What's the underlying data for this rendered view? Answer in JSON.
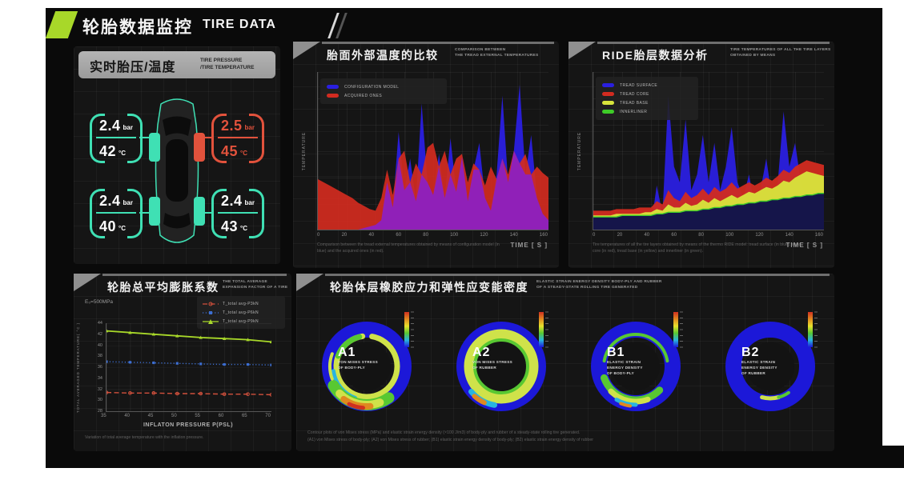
{
  "header": {
    "title_zh": "轮胎数据监控",
    "title_en": "TIRE DATA"
  },
  "palette": {
    "accent_green": "#a8d829",
    "teal": "#3fe0b4",
    "alert_red": "#e2523c",
    "chart_blue": "#2a1fe0",
    "chart_red": "#d22b20",
    "chart_yellow": "#d8e53c",
    "chart_green": "#3ecc28",
    "overlap_purple": "#8a1fc8",
    "panel_bg": "#141414",
    "header_gray": "#a6a6a6",
    "ring_blue": "#1c18d8"
  },
  "tire_panel": {
    "title_zh": "实时胎压/温度",
    "title_en_lines": [
      "TIRE PRESSURE",
      "/TIRE TEMPERATURE"
    ],
    "tires": [
      {
        "id": "front-left",
        "pressure": "2.4",
        "pressure_unit": "bar",
        "temperature": "42",
        "temperature_unit": "°C",
        "color": "#3fe0b4",
        "text_color": "#ffffff",
        "status": "normal"
      },
      {
        "id": "front-right",
        "pressure": "2.5",
        "pressure_unit": "bar",
        "temperature": "45",
        "temperature_unit": "°C",
        "color": "#e2523c",
        "text_color": "#e2523c",
        "status": "alert"
      },
      {
        "id": "rear-left",
        "pressure": "2.4",
        "pressure_unit": "bar",
        "temperature": "40",
        "temperature_unit": "°C",
        "color": "#3fe0b4",
        "text_color": "#ffffff",
        "status": "normal"
      },
      {
        "id": "rear-right",
        "pressure": "2.4",
        "pressure_unit": "bar",
        "temperature": "43",
        "temperature_unit": "°C",
        "color": "#3fe0b4",
        "text_color": "#ffffff",
        "status": "normal"
      }
    ]
  },
  "chart_data": [
    {
      "id": "tread-temperature-comparison",
      "type": "area",
      "title_zh": "胎面外部温度的比较",
      "title_en_lines": [
        "COMPARISON BETWEEN",
        "THE TREAD EXTERNAL TEMPERATURES"
      ],
      "xlabel": "TIME [ S ]",
      "ylabel": "TEMPERATURE",
      "xlim": [
        0,
        160
      ],
      "x_step": 4,
      "x_ticks": [
        0,
        20,
        40,
        60,
        80,
        100,
        120,
        140,
        160
      ],
      "ylim": [
        0,
        100
      ],
      "grid": true,
      "legend_position": "top-left",
      "series": [
        {
          "name": "CONFIGURATION MODEL",
          "color": "#2a1fe0",
          "values": [
            0,
            0,
            0,
            0,
            0,
            0,
            0,
            0,
            1,
            2,
            3,
            6,
            30,
            14,
            62,
            25,
            45,
            18,
            80,
            30,
            22,
            48,
            20,
            58,
            24,
            46,
            18,
            38,
            55,
            20,
            12,
            35,
            85,
            30,
            50,
            92,
            35,
            60,
            20,
            10,
            6
          ]
        },
        {
          "name": "ACQUIRED ONES",
          "color": "#d22b20",
          "values": [
            32,
            30,
            28,
            26,
            24,
            22,
            20,
            17,
            15,
            13,
            12,
            20,
            38,
            22,
            45,
            50,
            30,
            42,
            35,
            52,
            55,
            40,
            50,
            35,
            45,
            48,
            30,
            42,
            38,
            28,
            40,
            32,
            45,
            35,
            50,
            42,
            48,
            35,
            40,
            36,
            33
          ]
        }
      ],
      "overlap_color": "#8a1fc8",
      "caption": "Comparison between the tread external temperatures obtained by means of configuration model (in blue) and the acquired ones (in red)."
    },
    {
      "id": "ride-tire-layers",
      "type": "area",
      "title_zh": "RIDE胎层数据分析",
      "title_en_lines": [
        "TIRE TEMPERATURES OF ALL THE TIRE LAYERS",
        "OBTAINED BY MEANS"
      ],
      "xlabel": "TIME [ S ]",
      "ylabel": "TEMPERATURE",
      "xlim": [
        0,
        160
      ],
      "x_step": 4,
      "x_ticks": [
        0,
        20,
        40,
        60,
        80,
        100,
        120,
        140,
        160
      ],
      "ylim": [
        0,
        100
      ],
      "grid": true,
      "legend_position": "top-left",
      "series": [
        {
          "name": "TREAD SURFACE",
          "color": "#2a1fe0",
          "values": [
            0,
            0,
            0,
            0,
            0,
            0,
            0,
            0,
            0,
            0,
            2,
            28,
            10,
            85,
            40,
            30,
            70,
            25,
            35,
            60,
            30,
            55,
            25,
            40,
            65,
            30,
            20,
            35,
            15,
            25,
            45,
            20,
            30,
            75,
            40,
            55,
            30,
            20,
            15,
            10,
            8
          ]
        },
        {
          "name": "TREAD CORE",
          "color": "#d22b20",
          "values": [
            12,
            12,
            12,
            12,
            13,
            13,
            13,
            13,
            14,
            14,
            14,
            18,
            16,
            25,
            20,
            18,
            24,
            20,
            22,
            26,
            22,
            27,
            24,
            26,
            30,
            26,
            28,
            30,
            28,
            30,
            33,
            31,
            34,
            38,
            36,
            40,
            42,
            44,
            43,
            42,
            41
          ]
        },
        {
          "name": "TREAD BASE",
          "color": "#d8e53c",
          "values": [
            9,
            9,
            9,
            9,
            10,
            10,
            10,
            10,
            10,
            11,
            11,
            13,
            12,
            16,
            14,
            14,
            17,
            15,
            16,
            19,
            17,
            20,
            18,
            20,
            22,
            20,
            22,
            24,
            23,
            25,
            27,
            26,
            28,
            31,
            30,
            33,
            35,
            37,
            36,
            35,
            34
          ]
        },
        {
          "name": "INNERLINER",
          "color": "#3ecc28",
          "values": [
            8,
            8,
            8,
            8,
            8,
            9,
            9,
            9,
            9,
            9,
            9,
            10,
            10,
            11,
            11,
            11,
            12,
            12,
            12,
            13,
            13,
            14,
            14,
            15,
            15,
            16,
            16,
            17,
            17,
            18,
            18,
            19,
            19,
            20,
            20,
            21,
            21,
            22,
            22,
            23,
            23
          ]
        }
      ],
      "fill_under_innerliner": "#15154a",
      "caption": "Tire temperatures of all the tire layers obtained by means of the thermo RIDE model: tread surface (in blue), tread core (in red), tread base (in yellow) and innerliner (in green)."
    },
    {
      "id": "expansion-factor",
      "type": "line",
      "title_zh": "轮胎总平均膨胀系数",
      "title_en_lines": [
        "THE TOTAL AVERAGE",
        "EXPANSION FACTOR OF A TIRE"
      ],
      "annotation": "E₀=500MPa",
      "xlabel": "INFLATON PRESSURE P(PSL)",
      "ylabel": "TOTAL AVERAGED TEMPERATURE( °C )",
      "x": [
        35,
        40,
        45,
        50,
        55,
        60,
        65,
        70
      ],
      "xlim": [
        35,
        70
      ],
      "ylim": [
        28,
        44
      ],
      "y_ticks": [
        28,
        30,
        32,
        34,
        36,
        38,
        40,
        42,
        44
      ],
      "grid": true,
      "legend_position": "top-right",
      "series": [
        {
          "name": "T_total avg-P3kN",
          "color": "#d2503c",
          "style": "dashed",
          "marker": "circle",
          "values": [
            31.4,
            31.3,
            31.3,
            31.2,
            31.2,
            31.1,
            31.1,
            31.0
          ]
        },
        {
          "name": "T_total avg-P6kN",
          "color": "#3c6ed2",
          "style": "dotted",
          "marker": "square",
          "values": [
            37.0,
            36.9,
            36.8,
            36.7,
            36.6,
            36.5,
            36.5,
            36.4
          ]
        },
        {
          "name": "T_total avg-P9kN",
          "color": "#a8d829",
          "style": "solid",
          "marker": "triangle",
          "values": [
            42.6,
            42.3,
            42.0,
            41.7,
            41.4,
            41.2,
            41.0,
            40.6
          ]
        }
      ],
      "caption": "Variation of total average temperature with the inflation pressure."
    },
    {
      "id": "tire-contours",
      "type": "heatmap",
      "title_zh": "轮胎体层橡胶应力和弹性应变能密度",
      "title_en_lines": [
        "ELASTIC STRAIN ENERGY DENSITY BODY-PLY AND RUBBER",
        "OF A STEADY-STATE ROLLING TIRE GENERATED"
      ],
      "items": [
        {
          "label": "A1",
          "desc": [
            "VON MISES STRESS",
            "OF BODY-PLY"
          ]
        },
        {
          "label": "A2",
          "desc": [
            "VON MISES STRESS",
            "OF RUBBER"
          ]
        },
        {
          "label": "B1",
          "desc": [
            "ELASTIC STRAIN",
            "ENERGY DENSITY",
            "OF BODY-PLY"
          ]
        },
        {
          "label": "B2",
          "desc": [
            "ELASTIC STRAIN",
            "ENERGY DENSITY",
            "OF RUBBER"
          ]
        }
      ],
      "colorbar_colors": [
        "#d03020",
        "#e08820",
        "#e8e02c",
        "#58c832",
        "#28b4e0",
        "#1c18d8"
      ],
      "caption": "Contour plots of von Mises stress (MPa) and elastic strain energy density (×100 J/m3) of body-ply and rubber of a steady-state rolling tire generated.",
      "caption2": "(A1) von Mises stress of body-ply;  (A2) von Mises stress of rubber;  (B1) elastic strain energy density of body-ply;  (B2) elastic strain energy density of rubber"
    }
  ]
}
